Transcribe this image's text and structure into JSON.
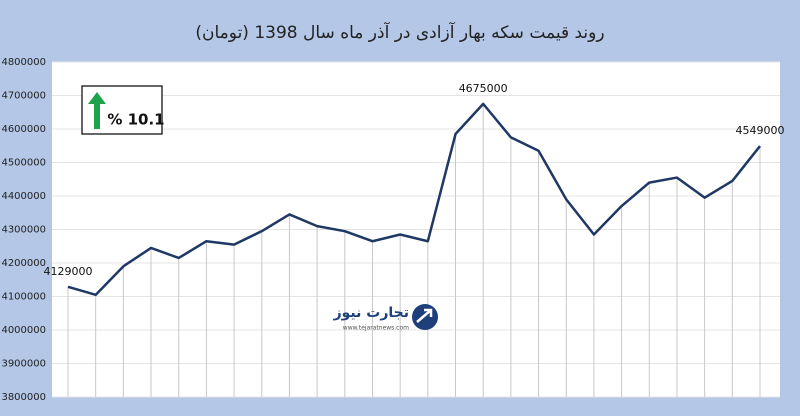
{
  "chart_data": {
    "type": "line",
    "title": "روند قیمت سکه بهار آزادی در آذر ماه سال 1398 (تومان)",
    "values": [
      4129000,
      4105000,
      4190000,
      4245000,
      4215000,
      4265000,
      4255000,
      4295000,
      4345000,
      4310000,
      4295000,
      4265000,
      4285000,
      4265000,
      4585000,
      4675000,
      4575000,
      4535000,
      4390000,
      4285000,
      4370000,
      4440000,
      4455000,
      4395000,
      4445000,
      4549000
    ],
    "labeled_points": [
      0,
      15,
      25
    ],
    "color": "#1f3864",
    "ylim": [
      3800000,
      4800000
    ],
    "yticks": [
      3800000,
      3900000,
      4000000,
      4100000,
      4200000,
      4300000,
      4400000,
      4500000,
      4600000,
      4700000,
      4800000
    ],
    "grid": true,
    "change_label": "% 10.1",
    "logo": {
      "name": "تجارت نیوز",
      "url": "www.tejaratnews.com"
    }
  }
}
